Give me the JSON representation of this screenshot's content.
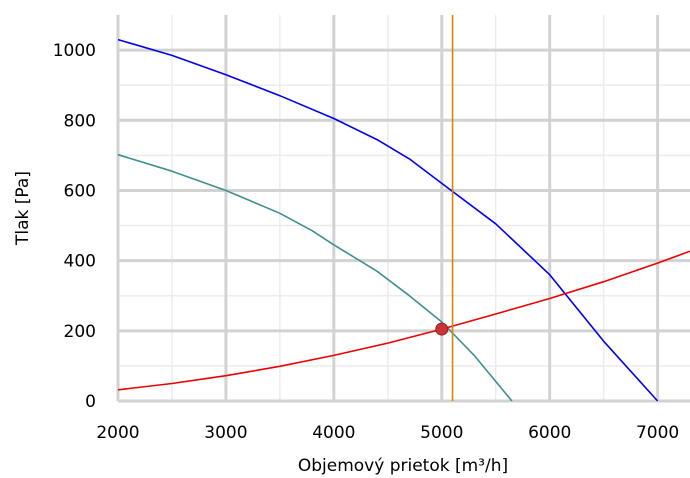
{
  "chart_data": {
    "type": "line",
    "title": "",
    "xlabel": "Objemový prietok [m³/h]",
    "ylabel": "Tlak [Pa]",
    "xlim": [
      2000,
      7300
    ],
    "ylim": [
      0,
      1100
    ],
    "x_ticks": [
      2000,
      3000,
      4000,
      5000,
      6000,
      7000
    ],
    "y_ticks": [
      0,
      200,
      400,
      600,
      800,
      1000
    ],
    "grid": true,
    "legend": "none",
    "series": [
      {
        "color": "#0000ee",
        "points": [
          [
            2000,
            1030
          ],
          [
            2500,
            985
          ],
          [
            3000,
            930
          ],
          [
            3500,
            870
          ],
          [
            4000,
            805
          ],
          [
            4400,
            745
          ],
          [
            4700,
            690
          ],
          [
            5000,
            620
          ],
          [
            5500,
            505
          ],
          [
            6000,
            360
          ],
          [
            6500,
            170
          ],
          [
            7000,
            0
          ]
        ]
      },
      {
        "color": "#3f8f8f",
        "points": [
          [
            2000,
            702
          ],
          [
            2500,
            655
          ],
          [
            3000,
            600
          ],
          [
            3500,
            535
          ],
          [
            3800,
            485
          ],
          [
            4000,
            445
          ],
          [
            4400,
            370
          ],
          [
            4700,
            300
          ],
          [
            5000,
            225
          ],
          [
            5300,
            130
          ],
          [
            5650,
            0
          ]
        ]
      },
      {
        "color": "#ee0000",
        "points": [
          [
            2000,
            32
          ],
          [
            2500,
            50
          ],
          [
            3000,
            72
          ],
          [
            3500,
            99
          ],
          [
            4000,
            130
          ],
          [
            4500,
            165
          ],
          [
            5000,
            205
          ],
          [
            5500,
            248
          ],
          [
            6000,
            292
          ],
          [
            6500,
            340
          ],
          [
            7000,
            393
          ],
          [
            7300,
            427
          ]
        ]
      }
    ],
    "vertical_line": {
      "x": 5100,
      "color": "#d4860b"
    },
    "operating_point": {
      "x": 5000,
      "y": 205,
      "color": "#cc3333"
    }
  }
}
